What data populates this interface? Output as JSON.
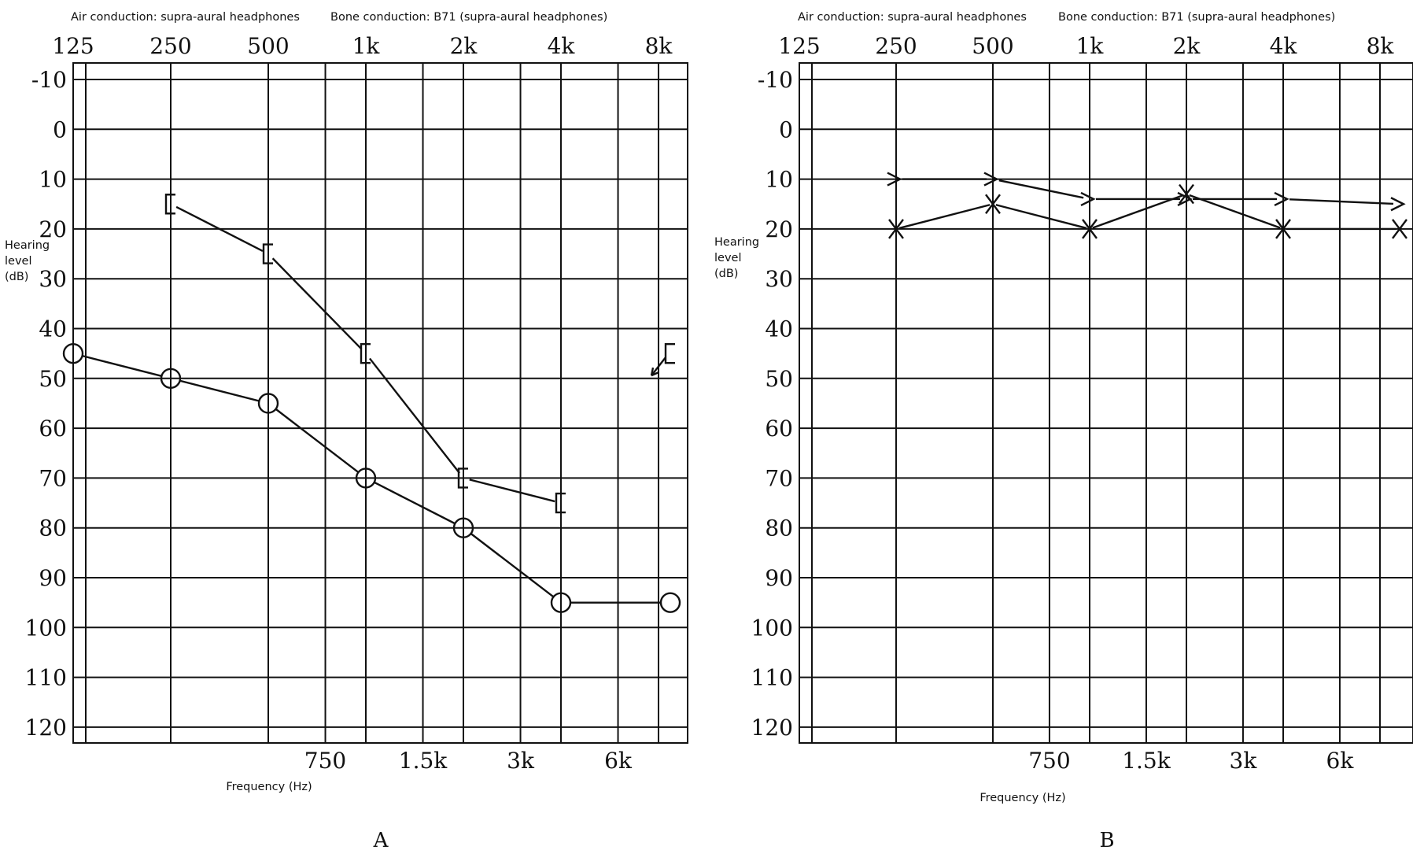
{
  "panels": [
    {
      "id": "A",
      "panel_label": "A",
      "caption_air": "Air conduction: supra-aural headphones",
      "caption_bone": "Bone conduction: B71 (supra-aural headphones)",
      "ylabel_lines": [
        "Hearing",
        "level",
        "(dB)"
      ],
      "xlabel": "Frequency (Hz)"
    },
    {
      "id": "B",
      "panel_label": "B",
      "caption_air": "Air conduction: supra-aural headphones",
      "caption_bone": "Bone conduction: B71 (supra-aural headphones)",
      "ylabel_lines": [
        "Hearing",
        "level",
        "(dB)"
      ],
      "xlabel": "Frequency (Hz)"
    }
  ],
  "chart_data": [
    {
      "type": "line",
      "panel": "A",
      "xlabel": "Frequency (Hz)",
      "ylabel": "Hearing level (dB)",
      "x_scale": "log2",
      "y_inverted": true,
      "ylim": [
        -10,
        120
      ],
      "top_ticks": [
        "125",
        "250",
        "500",
        "1k",
        "2k",
        "4k",
        "8k"
      ],
      "top_tick_hz": [
        125,
        250,
        500,
        1000,
        2000,
        4000,
        8000
      ],
      "bottom_ticks": [
        "750",
        "1.5k",
        "3k",
        "6k"
      ],
      "bottom_tick_hz": [
        750,
        1500,
        3000,
        6000
      ],
      "y_ticks": [
        -10,
        0,
        10,
        20,
        30,
        40,
        50,
        60,
        70,
        80,
        90,
        100,
        110,
        120
      ],
      "grid": true,
      "series": [
        {
          "marker": "circle",
          "x": [
            125,
            250,
            500,
            1000,
            2000,
            4000,
            8000
          ],
          "y": [
            45,
            50,
            55,
            70,
            80,
            95,
            95
          ],
          "connected": true
        },
        {
          "marker": "bracket-left",
          "x": [
            250,
            500,
            1000,
            2000,
            4000
          ],
          "y": [
            15,
            25,
            45,
            70,
            75
          ],
          "connected": true
        },
        {
          "marker": "bracket-left-arrow",
          "x": [
            8000
          ],
          "y": [
            45
          ],
          "connected": false
        }
      ]
    },
    {
      "type": "line",
      "panel": "B",
      "xlabel": "Frequency (Hz)",
      "ylabel": "Hearing level (dB)",
      "x_scale": "log2",
      "y_inverted": true,
      "ylim": [
        -10,
        120
      ],
      "top_ticks": [
        "125",
        "250",
        "500",
        "1k",
        "2k",
        "4k",
        "8k"
      ],
      "top_tick_hz": [
        125,
        250,
        500,
        1000,
        2000,
        4000,
        8000
      ],
      "bottom_ticks": [
        "750",
        "1.5k",
        "3k",
        "6k"
      ],
      "bottom_tick_hz": [
        750,
        1500,
        3000,
        6000
      ],
      "y_ticks": [
        -10,
        0,
        10,
        20,
        30,
        40,
        50,
        60,
        70,
        80,
        90,
        100,
        110,
        120
      ],
      "grid": true,
      "series": [
        {
          "marker": "cross",
          "x": [
            250,
            500,
            1000,
            2000,
            4000,
            8000
          ],
          "y": [
            20,
            15,
            20,
            13,
            20,
            20
          ],
          "connected": true
        },
        {
          "marker": "chevron-right",
          "x": [
            250,
            500,
            1000,
            2000,
            4000,
            8000
          ],
          "y": [
            10,
            10,
            14,
            14,
            14,
            15
          ],
          "connected": true
        }
      ]
    }
  ]
}
